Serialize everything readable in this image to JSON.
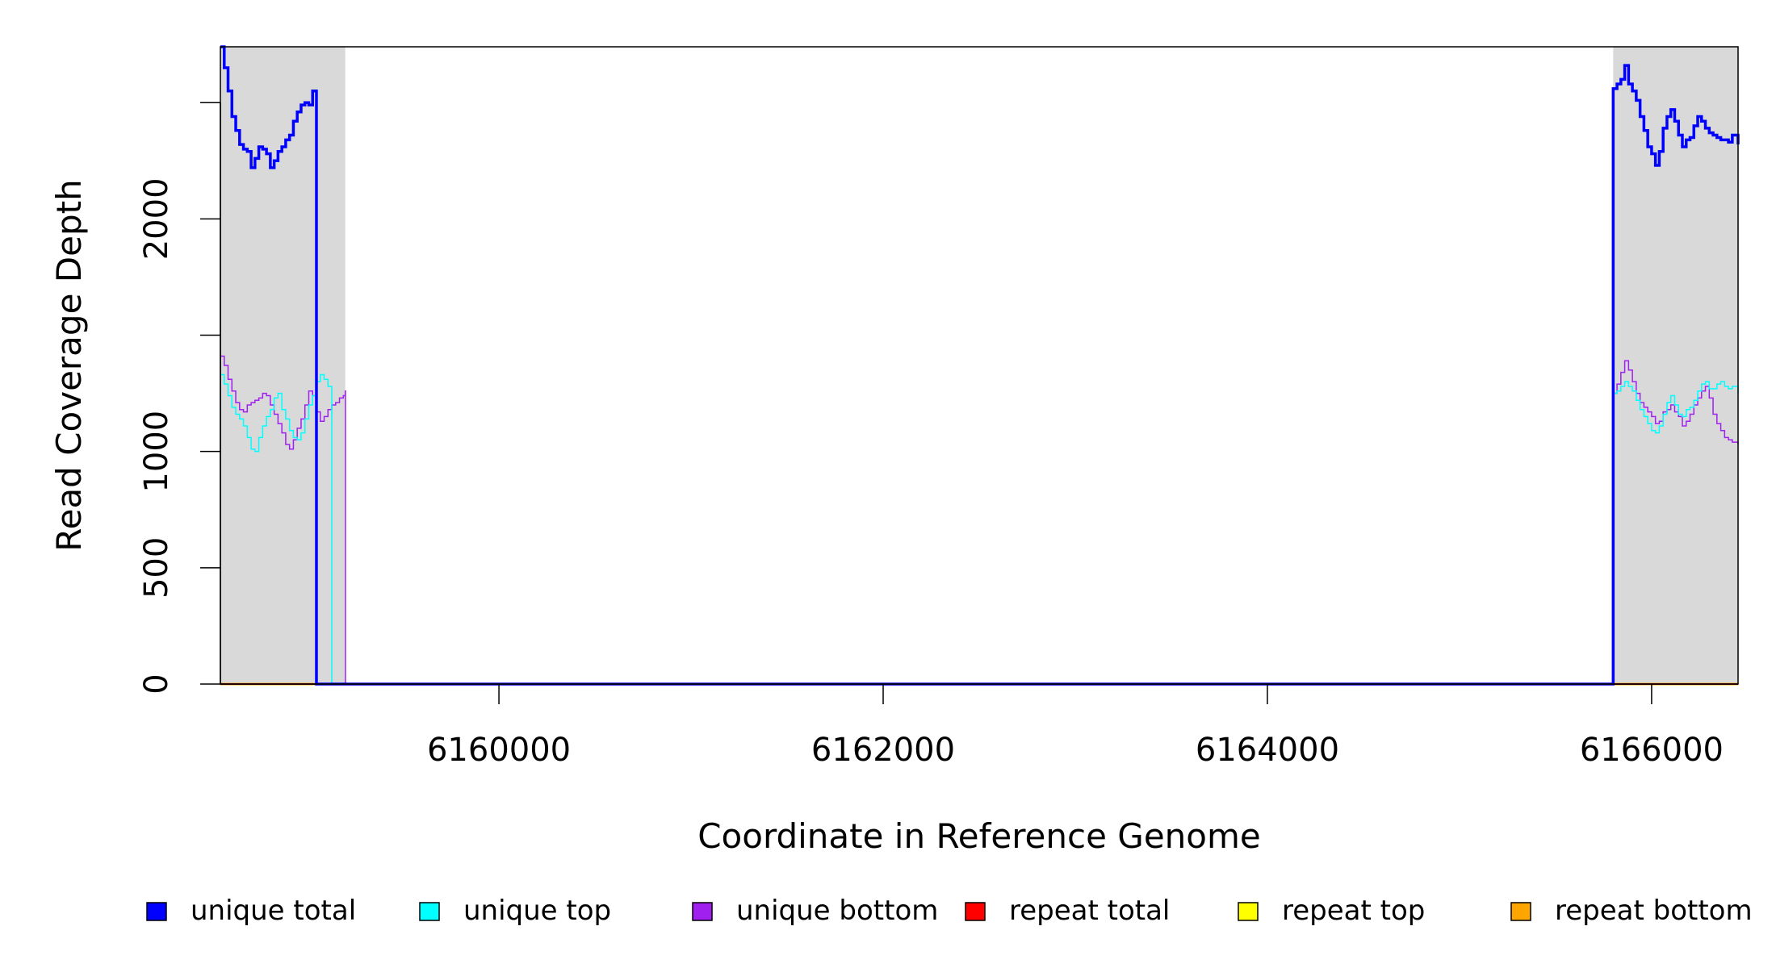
{
  "chart_data": {
    "type": "line",
    "title": "",
    "xlabel": "Coordinate in Reference Genome",
    "ylabel": "Read Coverage Depth",
    "xlim": [
      6158550,
      6166450
    ],
    "ylim": [
      0,
      2740
    ],
    "x_ticks": [
      6160000,
      6162000,
      6164000,
      6166000
    ],
    "x_tick_labels": [
      "6160000",
      "6162000",
      "6164000",
      "6166000"
    ],
    "y_ticks": [
      0,
      500,
      1000,
      1500,
      2000,
      2500
    ],
    "y_tick_labels": [
      "0",
      "500",
      "1000",
      "",
      "2000",
      ""
    ],
    "grid": false,
    "shaded_regions": [
      [
        6158550,
        6159200
      ],
      [
        6165800,
        6166450
      ]
    ],
    "shade_color": "#d9d9d9",
    "legend_position": "bottom",
    "series": [
      {
        "name": "unique total",
        "color": "#0000ff",
        "line_width": 3.5,
        "x": [
          6158550,
          6158570,
          6158590,
          6158610,
          6158630,
          6158650,
          6158670,
          6158690,
          6158710,
          6158730,
          6158750,
          6158770,
          6158790,
          6158810,
          6158830,
          6158850,
          6158870,
          6158890,
          6158910,
          6158930,
          6158950,
          6158970,
          6158990,
          6159010,
          6159030,
          6159050,
          6159070,
          6159090,
          6159110,
          6159130,
          6159150,
          6159170,
          6159190,
          6159200,
          6159201,
          6165799,
          6165800,
          6165820,
          6165840,
          6165860,
          6165880,
          6165900,
          6165920,
          6165940,
          6165960,
          6165980,
          6166000,
          6166020,
          6166040,
          6166060,
          6166080,
          6166100,
          6166120,
          6166140,
          6166160,
          6166180,
          6166200,
          6166220,
          6166240,
          6166260,
          6166280,
          6166300,
          6166320,
          6166340,
          6166360,
          6166380,
          6166400,
          6166420,
          6166450
        ],
        "y": [
          2740,
          2650,
          2550,
          2440,
          2380,
          2320,
          2300,
          2290,
          2220,
          2260,
          2310,
          2300,
          2280,
          2220,
          2250,
          2290,
          2310,
          2340,
          2360,
          2420,
          2460,
          2490,
          2500,
          2490,
          2550,
          0,
          0,
          0,
          0,
          0,
          0,
          0,
          0,
          0,
          0,
          0,
          2560,
          2580,
          2600,
          2660,
          2580,
          2550,
          2510,
          2440,
          2380,
          2310,
          2280,
          2230,
          2290,
          2390,
          2440,
          2470,
          2420,
          2360,
          2310,
          2340,
          2350,
          2400,
          2440,
          2420,
          2390,
          2370,
          2360,
          2350,
          2340,
          2340,
          2330,
          2360,
          2320
        ]
      },
      {
        "name": "unique top",
        "color": "#00ffff",
        "line_width": 1.5,
        "x": [
          6158550,
          6158570,
          6158590,
          6158610,
          6158630,
          6158650,
          6158670,
          6158690,
          6158710,
          6158730,
          6158750,
          6158770,
          6158790,
          6158810,
          6158830,
          6158850,
          6158870,
          6158890,
          6158910,
          6158930,
          6158950,
          6158970,
          6158990,
          6159010,
          6159030,
          6159050,
          6159070,
          6159090,
          6159110,
          6159130,
          6159150,
          6159170,
          6159190,
          6159200,
          6159201,
          6165799,
          6165800,
          6165820,
          6165840,
          6165860,
          6165880,
          6165900,
          6165920,
          6165940,
          6165960,
          6165980,
          6166000,
          6166020,
          6166040,
          6166060,
          6166080,
          6166100,
          6166120,
          6166140,
          6166160,
          6166180,
          6166200,
          6166220,
          6166240,
          6166260,
          6166280,
          6166300,
          6166320,
          6166340,
          6166360,
          6166380,
          6166400,
          6166420,
          6166450
        ],
        "y": [
          1330,
          1290,
          1240,
          1190,
          1160,
          1140,
          1110,
          1060,
          1010,
          1000,
          1060,
          1110,
          1150,
          1180,
          1230,
          1250,
          1180,
          1140,
          1090,
          1060,
          1050,
          1080,
          1140,
          1200,
          1240,
          1300,
          1330,
          1310,
          1280,
          0,
          0,
          0,
          0,
          0,
          0,
          0,
          1250,
          1260,
          1280,
          1300,
          1280,
          1260,
          1220,
          1180,
          1150,
          1120,
          1090,
          1080,
          1110,
          1160,
          1210,
          1240,
          1200,
          1160,
          1150,
          1180,
          1190,
          1220,
          1260,
          1290,
          1300,
          1270,
          1270,
          1290,
          1300,
          1280,
          1270,
          1280,
          1250
        ]
      },
      {
        "name": "unique bottom",
        "color": "#a020f0",
        "line_width": 1.5,
        "x": [
          6158550,
          6158570,
          6158590,
          6158610,
          6158630,
          6158650,
          6158670,
          6158690,
          6158710,
          6158730,
          6158750,
          6158770,
          6158790,
          6158810,
          6158830,
          6158850,
          6158870,
          6158890,
          6158910,
          6158930,
          6158950,
          6158970,
          6158990,
          6159010,
          6159030,
          6159050,
          6159070,
          6159090,
          6159110,
          6159130,
          6159150,
          6159170,
          6159190,
          6159200,
          6159201,
          6165799,
          6165800,
          6165820,
          6165840,
          6165860,
          6165880,
          6165900,
          6165920,
          6165940,
          6165960,
          6165980,
          6166000,
          6166020,
          6166040,
          6166060,
          6166080,
          6166100,
          6166120,
          6166140,
          6166160,
          6166180,
          6166200,
          6166220,
          6166240,
          6166260,
          6166280,
          6166300,
          6166320,
          6166340,
          6166360,
          6166380,
          6166400,
          6166420,
          6166450
        ],
        "y": [
          1410,
          1370,
          1310,
          1260,
          1210,
          1180,
          1170,
          1200,
          1210,
          1220,
          1230,
          1250,
          1240,
          1200,
          1160,
          1120,
          1080,
          1030,
          1010,
          1050,
          1100,
          1140,
          1200,
          1260,
          1240,
          1170,
          1130,
          1150,
          1180,
          1200,
          1210,
          1230,
          1240,
          1260,
          0,
          0,
          1250,
          1290,
          1340,
          1390,
          1350,
          1300,
          1250,
          1210,
          1190,
          1170,
          1150,
          1120,
          1130,
          1170,
          1180,
          1200,
          1170,
          1150,
          1110,
          1130,
          1160,
          1200,
          1230,
          1260,
          1280,
          1230,
          1160,
          1120,
          1090,
          1060,
          1050,
          1040,
          1030
        ]
      },
      {
        "name": "repeat total",
        "color": "#ff0000",
        "line_width": 2,
        "x": [
          6158550,
          6166450
        ],
        "y": [
          0,
          0
        ]
      },
      {
        "name": "repeat top",
        "color": "#ffff00",
        "line_width": 2,
        "x": [
          6158550,
          6166450
        ],
        "y": [
          0,
          0
        ]
      },
      {
        "name": "repeat bottom",
        "color": "#ffa500",
        "line_width": 3,
        "x": [
          6158550,
          6166450
        ],
        "y": [
          0,
          0
        ]
      }
    ],
    "legend": [
      {
        "label": "unique total",
        "color": "#0000ff"
      },
      {
        "label": "unique top",
        "color": "#00ffff"
      },
      {
        "label": "unique bottom",
        "color": "#a020f0"
      },
      {
        "label": "repeat total",
        "color": "#ff0000"
      },
      {
        "label": "repeat top",
        "color": "#ffff00"
      },
      {
        "label": "repeat bottom",
        "color": "#ffa500"
      }
    ]
  }
}
